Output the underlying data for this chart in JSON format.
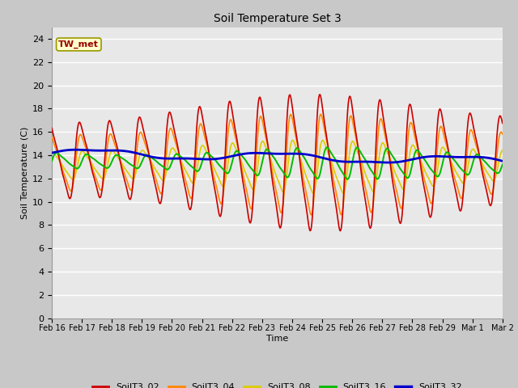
{
  "title": "Soil Temperature Set 3",
  "xlabel": "Time",
  "ylabel": "Soil Temperature (C)",
  "ylim": [
    0,
    25
  ],
  "yticks": [
    0,
    2,
    4,
    6,
    8,
    10,
    12,
    14,
    16,
    18,
    20,
    22,
    24
  ],
  "colors": {
    "SoilT3_02": "#cc0000",
    "SoilT3_04": "#ff8800",
    "SoilT3_08": "#ddcc00",
    "SoilT3_16": "#00bb00",
    "SoilT3_32": "#0000cc"
  },
  "fig_bg": "#c8c8c8",
  "plot_bg": "#e8e8e8",
  "grid_color": "#ffffff",
  "annotation_text": "TW_met",
  "annotation_fg": "#990000",
  "annotation_bg": "#ffffcc",
  "annotation_border": "#999900",
  "x_tick_labels": [
    "Feb 16",
    "Feb 17",
    "Feb 18",
    "Feb 19",
    "Feb 20",
    "Feb 21",
    "Feb 22",
    "Feb 23",
    "Feb 24",
    "Feb 25",
    "Feb 26",
    "Feb 27",
    "Feb 28",
    "Feb 29",
    "Mar 1",
    "Mar 2"
  ],
  "lw_thin": 1.2,
  "lw_blue": 2.0,
  "n_days": 15,
  "pts_per_day": 48
}
